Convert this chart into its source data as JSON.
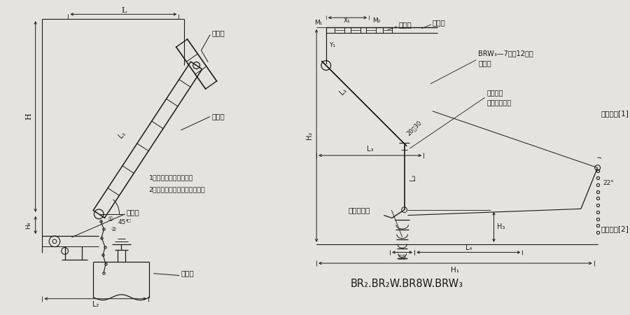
{
  "bg_color": "#e5e3dd",
  "line_color": "#1a1a1a",
  "title_right": "BR₂.BR₂W.BR8W.BRW₃",
  "left_labels": {
    "busbar": "母线排",
    "fuse": "熔断器",
    "indicator": "指示器",
    "capacitor": "电容器",
    "note1": "1、尾线在此外缠绕固定",
    "note2": "2、此段尾线应保持足够松弚度"
  },
  "right_labels": {
    "busbar": "母线排",
    "conductor_plate": "导电板",
    "fuse_type": "BRW₃—7型（12型）",
    "fuse_body": "熔断器",
    "anti_vibration": "防振装置",
    "normal_install": "正常安装状态",
    "blown_state1": "熔断状态[1]",
    "blown_state2": "熔断状态[2]",
    "capacitor_terminal": "电容器端子"
  }
}
